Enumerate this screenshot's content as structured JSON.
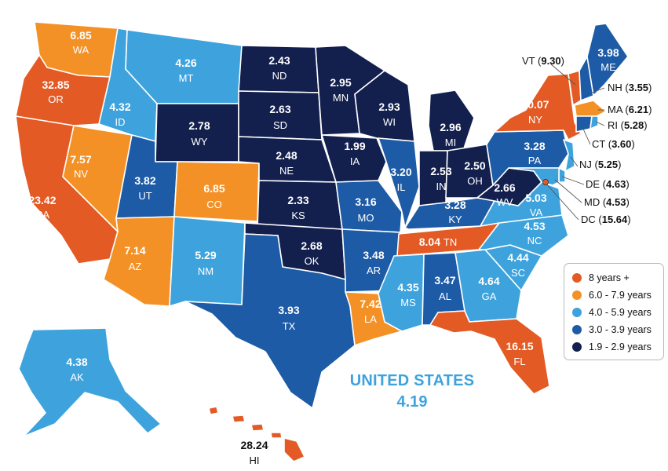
{
  "colors": {
    "cat_8plus": "#e35a24",
    "cat_6_79": "#f39126",
    "cat_4_59": "#3ea3dd",
    "cat_3_39": "#1d5ba6",
    "cat_19_29": "#13204e"
  },
  "states": {
    "WA": {
      "abbr": "WA",
      "value": "6.85"
    },
    "OR": {
      "abbr": "OR",
      "value": "32.85"
    },
    "CA": {
      "abbr": "CA",
      "value": "23.42"
    },
    "NV": {
      "abbr": "NV",
      "value": "7.57"
    },
    "ID": {
      "abbr": "ID",
      "value": "4.32"
    },
    "MT": {
      "abbr": "MT",
      "value": "4.26"
    },
    "WY": {
      "abbr": "WY",
      "value": "2.78"
    },
    "UT": {
      "abbr": "UT",
      "value": "3.82"
    },
    "CO": {
      "abbr": "CO",
      "value": "6.85"
    },
    "AZ": {
      "abbr": "AZ",
      "value": "7.14"
    },
    "NM": {
      "abbr": "NM",
      "value": "5.29"
    },
    "ND": {
      "abbr": "ND",
      "value": "2.43"
    },
    "SD": {
      "abbr": "SD",
      "value": "2.63"
    },
    "NE": {
      "abbr": "NE",
      "value": "2.48"
    },
    "KS": {
      "abbr": "KS",
      "value": "2.33"
    },
    "OK": {
      "abbr": "OK",
      "value": "2.68"
    },
    "TX": {
      "abbr": "TX",
      "value": "3.93"
    },
    "MN": {
      "abbr": "MN",
      "value": "2.95"
    },
    "IA": {
      "abbr": "IA",
      "value": "1.99"
    },
    "MO": {
      "abbr": "MO",
      "value": "3.16"
    },
    "AR": {
      "abbr": "AR",
      "value": "3.48"
    },
    "LA": {
      "abbr": "LA",
      "value": "7.42"
    },
    "WI": {
      "abbr": "WI",
      "value": "2.93"
    },
    "IL": {
      "abbr": "IL",
      "value": "3.20"
    },
    "MI": {
      "abbr": "MI",
      "value": "2.96"
    },
    "IN": {
      "abbr": "IN",
      "value": "2.53"
    },
    "OH": {
      "abbr": "OH",
      "value": "2.50"
    },
    "KY": {
      "abbr": "KY",
      "value": "3.28"
    },
    "TN": {
      "abbr": "TN",
      "value": "8.04"
    },
    "MS": {
      "abbr": "MS",
      "value": "4.35"
    },
    "AL": {
      "abbr": "AL",
      "value": "3.47"
    },
    "GA": {
      "abbr": "GA",
      "value": "4.64"
    },
    "FL": {
      "abbr": "FL",
      "value": "16.15"
    },
    "SC": {
      "abbr": "SC",
      "value": "4.44"
    },
    "NC": {
      "abbr": "NC",
      "value": "4.53"
    },
    "VA": {
      "abbr": "VA",
      "value": "5.03"
    },
    "WV": {
      "abbr": "WV",
      "value": "2.66"
    },
    "PA": {
      "abbr": "PA",
      "value": "3.28"
    },
    "NY": {
      "abbr": "NY",
      "value": "10.07"
    },
    "ME": {
      "abbr": "ME",
      "value": "3.98"
    },
    "AK": {
      "abbr": "AK",
      "value": "4.38"
    },
    "HI": {
      "abbr": "HI",
      "value": "28.24"
    },
    "VT": {
      "abbr": "VT",
      "value": "9.30"
    },
    "NH": {
      "abbr": "NH",
      "value": "3.55"
    },
    "MA": {
      "abbr": "MA",
      "value": "6.21"
    },
    "RI": {
      "abbr": "RI",
      "value": "5.28"
    },
    "CT": {
      "abbr": "CT",
      "value": "3.60"
    },
    "NJ": {
      "abbr": "NJ",
      "value": "5.25"
    },
    "DE": {
      "abbr": "DE",
      "value": "4.63"
    },
    "MD": {
      "abbr": "MD",
      "value": "4.53"
    },
    "DC": {
      "abbr": "DC",
      "value": "15.64"
    }
  },
  "legend": [
    {
      "label": "8 years +",
      "color": "#e35a24"
    },
    {
      "label": "6.0 - 7.9 years",
      "color": "#f39126"
    },
    {
      "label": "4.0 - 5.9 years",
      "color": "#3ea3dd"
    },
    {
      "label": "3.0 - 3.9 years",
      "color": "#1d5ba6"
    },
    {
      "label": "1.9 - 2.9 years",
      "color": "#13204e"
    }
  ],
  "national": {
    "label": "UNITED STATES",
    "value": "4.19"
  }
}
